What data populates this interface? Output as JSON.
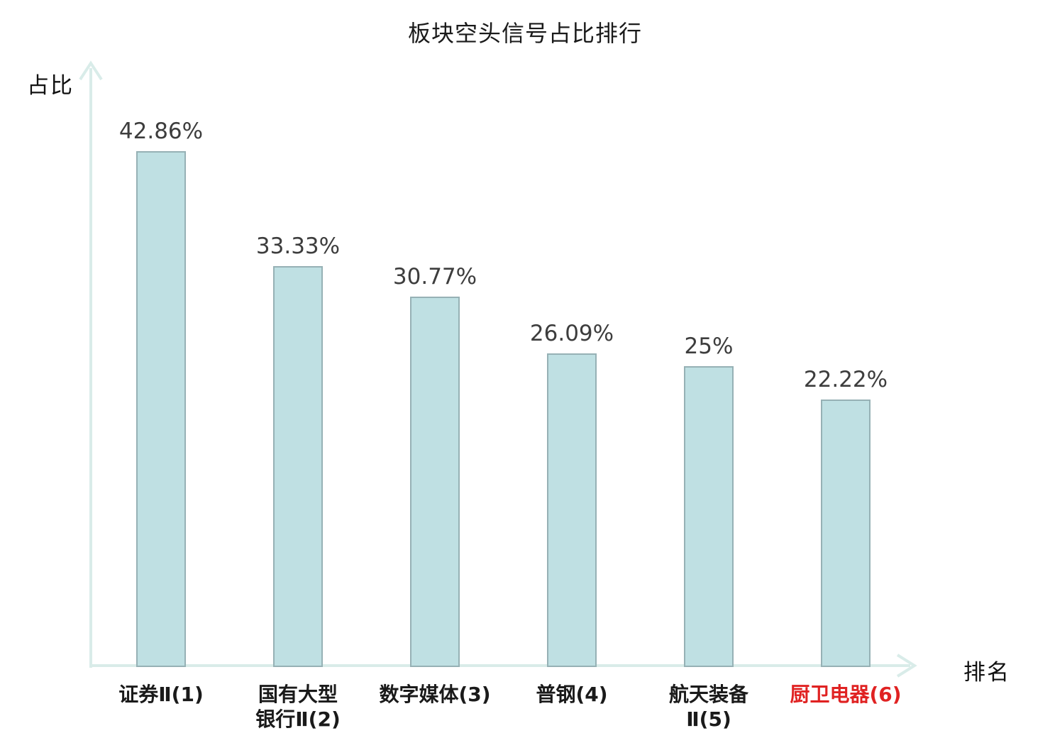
{
  "chart_data": {
    "type": "bar",
    "title": "板块空头信号占比排行",
    "ylabel": "占比",
    "xlabel": "排名",
    "ylim": [
      0,
      50
    ],
    "grid": false,
    "legend": null,
    "categories": [
      {
        "lines": [
          "证券Ⅱ(1)",
          null
        ],
        "highlight": false
      },
      {
        "lines": [
          "国有大型",
          "银行Ⅱ(2)"
        ],
        "highlight": false
      },
      {
        "lines": [
          "数字媒体(3)",
          null
        ],
        "highlight": false
      },
      {
        "lines": [
          "普钢(4)",
          null
        ],
        "highlight": false
      },
      {
        "lines": [
          "航天装备",
          "Ⅱ(5)"
        ],
        "highlight": false
      },
      {
        "lines": [
          "厨卫电器(6)",
          null
        ],
        "highlight": true
      }
    ],
    "values": [
      42.86,
      33.33,
      30.77,
      26.09,
      25,
      22.22
    ],
    "value_labels": [
      "42.86%",
      "33.33%",
      "30.77%",
      "26.09%",
      "25%",
      "22.22%"
    ]
  },
  "colors": {
    "background": "#ffffff",
    "bar_fill": "#bfe0e3",
    "bar_border": "#96b1b5",
    "axis": "#d9ece9",
    "value_label": "#3d3d3d",
    "category_label": "#1a1a1a",
    "highlight": "#e02222"
  }
}
